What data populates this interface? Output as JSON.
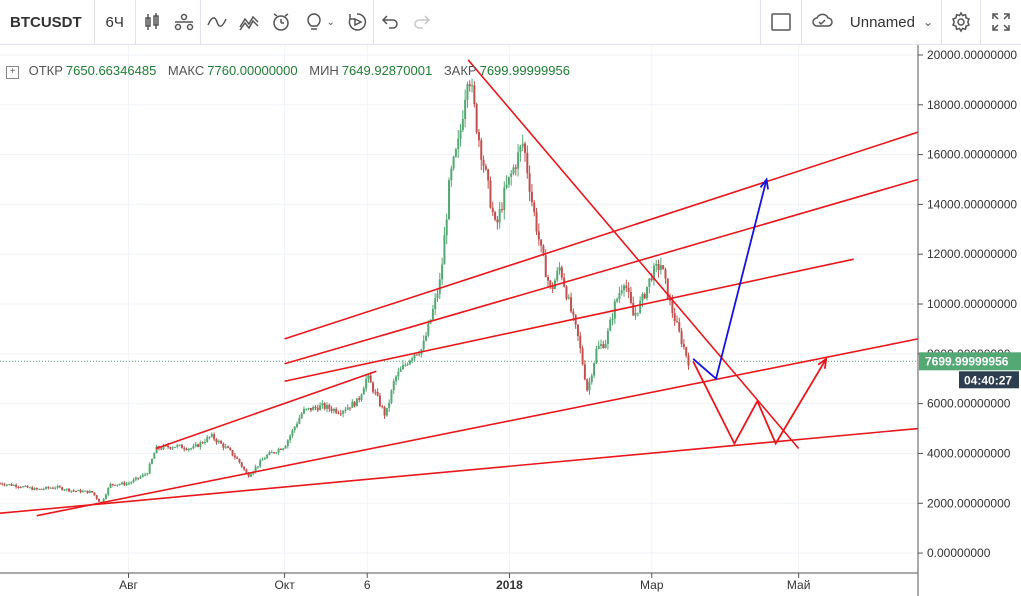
{
  "toolbar": {
    "symbol": "BTCUSDT",
    "interval": "6Ч",
    "layout_name": "Unnamed",
    "icons": [
      "candles-icon",
      "indicators-icon",
      "line-tool-icon",
      "templates-icon",
      "alert-icon",
      "idea-icon",
      "replay-icon",
      "undo-icon",
      "redo-icon",
      "fullscreen-layout-icon",
      "cloud-icon",
      "settings-icon",
      "expand-icon"
    ]
  },
  "ohlc": {
    "open_label": "ОТКР",
    "open": "7650.66346485",
    "high_label": "МАКС",
    "high": "7760.00000000",
    "low_label": "МИН",
    "low": "7649.92870001",
    "close_label": "ЗАКР",
    "close": "7699.99999956"
  },
  "price_tag": {
    "price": "7699.99999956",
    "countdown": "04:40:27",
    "color": "#53a874"
  },
  "chart_data": {
    "type": "candlestick",
    "y_tick_labels": [
      "20000.00000000",
      "18000.00000000",
      "16000.00000000",
      "14000.00000000",
      "12000.00000000",
      "10000.00000000",
      "8000.00000000",
      "6000.00000000",
      "4000.00000000",
      "2000.00000000",
      "0.00000000"
    ],
    "y_ticks": [
      20000,
      18000,
      16000,
      14000,
      12000,
      10000,
      8000,
      6000,
      4000,
      2000,
      0
    ],
    "ylim": [
      -800,
      20400
    ],
    "x_tick_labels": [
      "Авг",
      "Окт",
      "6",
      "2018",
      "Мар",
      "Май"
    ],
    "x_tick_positions": [
      0.14,
      0.31,
      0.4,
      0.555,
      0.71,
      0.87
    ],
    "last_price": 7700,
    "series": [
      {
        "name": "BTCUSDT",
        "points": [
          [
            0.0,
            2800
          ],
          [
            0.02,
            2700
          ],
          [
            0.04,
            2550
          ],
          [
            0.06,
            2650
          ],
          [
            0.08,
            2500
          ],
          [
            0.1,
            2450
          ],
          [
            0.11,
            2000
          ],
          [
            0.12,
            2750
          ],
          [
            0.14,
            2800
          ],
          [
            0.16,
            3200
          ],
          [
            0.17,
            4200
          ],
          [
            0.19,
            4300
          ],
          [
            0.21,
            4200
          ],
          [
            0.23,
            4700
          ],
          [
            0.25,
            4100
          ],
          [
            0.26,
            3700
          ],
          [
            0.27,
            3100
          ],
          [
            0.29,
            3900
          ],
          [
            0.31,
            4300
          ],
          [
            0.33,
            5700
          ],
          [
            0.35,
            5900
          ],
          [
            0.37,
            5700
          ],
          [
            0.39,
            6100
          ],
          [
            0.4,
            7100
          ],
          [
            0.42,
            5500
          ],
          [
            0.43,
            7000
          ],
          [
            0.45,
            8000
          ],
          [
            0.46,
            8200
          ],
          [
            0.47,
            9500
          ],
          [
            0.48,
            11000
          ],
          [
            0.49,
            15000
          ],
          [
            0.5,
            16500
          ],
          [
            0.51,
            19500
          ],
          [
            0.52,
            17000
          ],
          [
            0.53,
            15000
          ],
          [
            0.54,
            13000
          ],
          [
            0.55,
            14500
          ],
          [
            0.56,
            15500
          ],
          [
            0.57,
            16500
          ],
          [
            0.58,
            14000
          ],
          [
            0.59,
            12000
          ],
          [
            0.6,
            10500
          ],
          [
            0.61,
            11500
          ],
          [
            0.62,
            10000
          ],
          [
            0.63,
            8600
          ],
          [
            0.64,
            6500
          ],
          [
            0.65,
            8200
          ],
          [
            0.66,
            8500
          ],
          [
            0.67,
            10000
          ],
          [
            0.68,
            11000
          ],
          [
            0.69,
            9500
          ],
          [
            0.7,
            10200
          ],
          [
            0.71,
            11200
          ],
          [
            0.72,
            11600
          ],
          [
            0.73,
            10000
          ],
          [
            0.74,
            8800
          ],
          [
            0.75,
            7700
          ]
        ]
      }
    ],
    "red_trend_lines": [
      {
        "from": [
          0.31,
          8600
        ],
        "to": [
          1.0,
          16900
        ]
      },
      {
        "from": [
          0.31,
          7600
        ],
        "to": [
          1.0,
          15000
        ]
      },
      {
        "from": [
          0.31,
          6900
        ],
        "to": [
          0.93,
          11800
        ]
      },
      {
        "from": [
          0.04,
          1500
        ],
        "to": [
          1.0,
          8600
        ]
      },
      {
        "from": [
          0.0,
          1600
        ],
        "to": [
          1.0,
          5000
        ]
      },
      {
        "from": [
          0.17,
          4200
        ],
        "to": [
          0.41,
          7300
        ]
      },
      {
        "from": [
          0.51,
          19800
        ],
        "to": [
          0.87,
          4200
        ]
      }
    ],
    "red_projection": [
      [
        0.755,
        7700
      ],
      [
        0.8,
        4400
      ],
      [
        0.825,
        6100
      ],
      [
        0.845,
        4400
      ],
      [
        0.9,
        7800
      ]
    ],
    "blue_projection": [
      [
        0.755,
        7800
      ],
      [
        0.78,
        7000
      ],
      [
        0.835,
        15000
      ]
    ]
  }
}
